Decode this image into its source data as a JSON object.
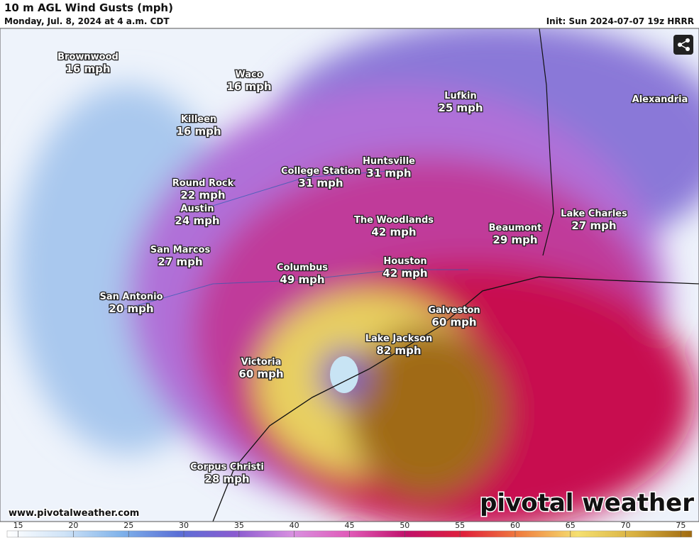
{
  "header": {
    "title": "10 m AGL Wind Gusts (mph)",
    "subtitle": "Monday, Jul. 8, 2024 at 4 a.m. CDT",
    "init": "Init: Sun 2024-07-07 19z HRRR"
  },
  "cities": [
    {
      "name": "Brownwood",
      "gust": "16 mph"
    },
    {
      "name": "Waco",
      "gust": "16 mph"
    },
    {
      "name": "Killeen",
      "gust": "16 mph"
    },
    {
      "name": "Lufkin",
      "gust": "25 mph"
    },
    {
      "name": "Alexandria"
    },
    {
      "name": "Huntsville",
      "gust": "31 mph"
    },
    {
      "name": "College Station",
      "gust": "31 mph"
    },
    {
      "name": "Round Rock",
      "gust": "22 mph"
    },
    {
      "name": "Austin",
      "gust": "24 mph"
    },
    {
      "name": "The Woodlands",
      "gust": "42 mph"
    },
    {
      "name": "Beaumont",
      "gust": "29 mph"
    },
    {
      "name": "Lake Charles",
      "gust": "27 mph"
    },
    {
      "name": "San Marcos",
      "gust": "27 mph"
    },
    {
      "name": "Columbus",
      "gust": "49 mph"
    },
    {
      "name": "Houston",
      "gust": "42 mph"
    },
    {
      "name": "San Antonio",
      "gust": "20 mph"
    },
    {
      "name": "Galveston",
      "gust": "60 mph"
    },
    {
      "name": "Lake Jackson",
      "gust": "82 mph"
    },
    {
      "name": "Victoria",
      "gust": "60 mph"
    },
    {
      "name": "Corpus Christi",
      "gust": "28 mph"
    }
  ],
  "footer": {
    "website": "www.pivotalweather.com",
    "logo": "pivotal weather"
  },
  "colorbar": {
    "range": [
      14,
      76
    ],
    "ticks": [
      15,
      20,
      25,
      30,
      35,
      40,
      45,
      50,
      55,
      60,
      65,
      70,
      75
    ],
    "colors": [
      "#ffffff",
      "#cfe3f7",
      "#7fb2ea",
      "#5a6fd6",
      "#8a5bd0",
      "#d890e0",
      "#e05ab8",
      "#c0106a",
      "#e0203a",
      "#f08040",
      "#f5e070",
      "#d8b040",
      "#a06a10"
    ]
  }
}
